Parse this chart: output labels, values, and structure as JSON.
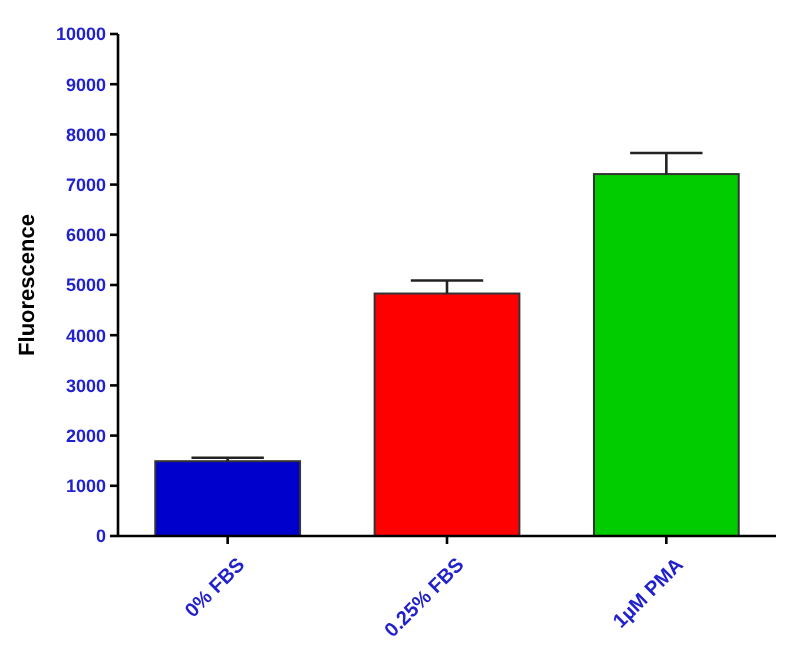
{
  "chart_data": {
    "type": "bar",
    "ylabel": "Fluorescence",
    "categories": [
      "0% FBS",
      "0.25% FBS",
      "1µM PMA"
    ],
    "values": [
      1490,
      4830,
      7210
    ],
    "colors": [
      "#0000cc",
      "#ff0000",
      "#00cc00"
    ],
    "errors": [
      [
        1490,
        1560
      ],
      [
        4830,
        5090
      ],
      [
        7210,
        7630
      ]
    ],
    "ylim": [
      0,
      10000
    ],
    "yticks": [
      0,
      1000,
      2000,
      3000,
      4000,
      5000,
      6000,
      7000,
      8000,
      9000,
      10000
    ],
    "grid": false
  }
}
